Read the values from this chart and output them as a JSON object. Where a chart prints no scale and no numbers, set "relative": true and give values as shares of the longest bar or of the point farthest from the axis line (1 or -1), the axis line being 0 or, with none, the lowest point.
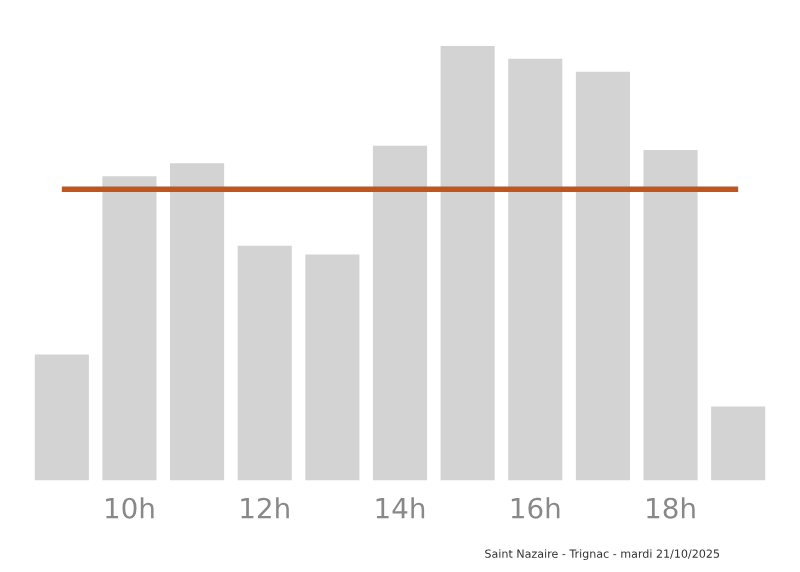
{
  "chart_data": {
    "type": "bar",
    "relative": true,
    "categories": [
      null,
      "10h",
      null,
      "12h",
      null,
      "14h",
      null,
      "16h",
      null,
      "18h",
      null
    ],
    "values": [
      0.29,
      0.7,
      0.73,
      0.54,
      0.52,
      0.77,
      1,
      0.97,
      0.94,
      0.76,
      0.17
    ],
    "color": "#d3d3d3",
    "ref_lines": [
      {
        "axis": "y",
        "value": 0.67,
        "color": "#c0561f"
      }
    ],
    "annotations": [
      "Saint Nazaire - Trignac - mardi 21/10/2025"
    ],
    "grid": false,
    "legend": false
  }
}
